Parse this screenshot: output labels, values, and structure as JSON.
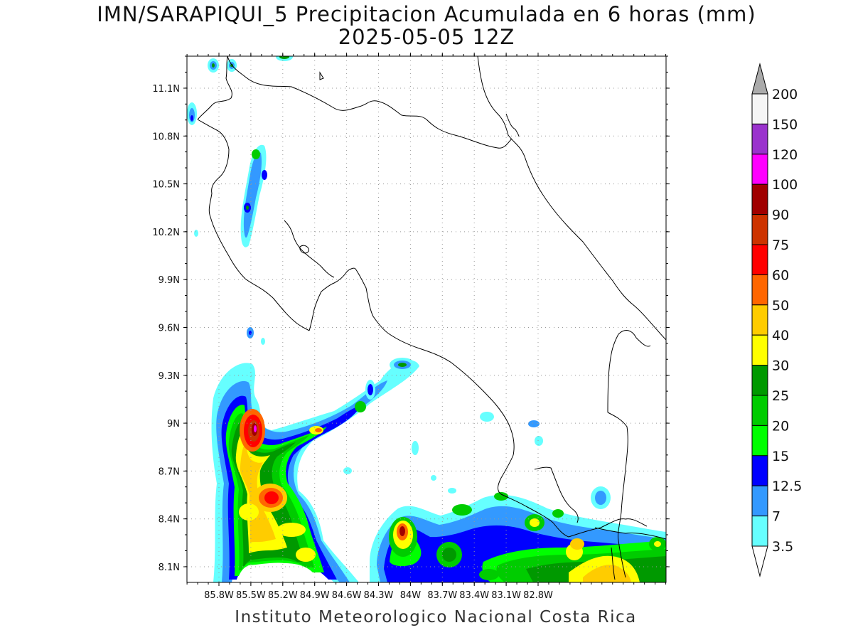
{
  "title": {
    "line1": "IMN/SARAPIQUI_5 Precipitacion Acumulada en 6 horas (mm)",
    "line2": "2025-05-05 12Z"
  },
  "credit": "Instituto Meteorologico Nacional Costa Rica",
  "axes": {
    "lat_ticks": [
      "11.1N",
      "10.8N",
      "10.5N",
      "10.2N",
      "9.9N",
      "9.6N",
      "9.3N",
      "9N",
      "8.7N",
      "8.4N",
      "8.1N"
    ],
    "lon_ticks": [
      "85.8W",
      "85.5W",
      "85.2W",
      "84.9W",
      "84.6W",
      "84.3W",
      "84W",
      "83.7W",
      "83.4W",
      "83.1W",
      "82.8W"
    ],
    "grid": "dotted"
  },
  "colorbar": {
    "levels": [
      "200",
      "150",
      "120",
      "100",
      "90",
      "75",
      "60",
      "50",
      "40",
      "30",
      "25",
      "20",
      "15",
      "12.5",
      "7",
      "3.5"
    ],
    "colors": [
      "#f5f5f5",
      "#9a32cd",
      "#ff00ff",
      "#a00000",
      "#cd3300",
      "#ff0000",
      "#ff6600",
      "#ffcc00",
      "#ffff00",
      "#009900",
      "#00cc00",
      "#00ff00",
      "#0000ff",
      "#3399ff",
      "#66ffff"
    ],
    "over_color": "#aaaaaa",
    "under_color": "#ffffff"
  }
}
